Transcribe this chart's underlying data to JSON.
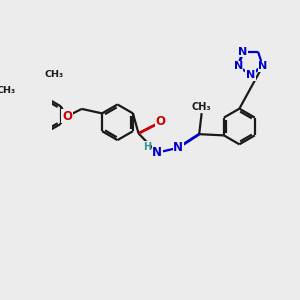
{
  "bg_color": "#ececec",
  "bc": "#1a1a1a",
  "bw": 1.6,
  "dbo": 0.012,
  "NC": "#0000cc",
  "OC": "#cc0000",
  "HC": "#3a9090",
  "fs": 7.5,
  "fss": 6.5,
  "figsize": [
    3.0,
    3.0
  ],
  "dpi": 100,
  "xlim": [
    0,
    10
  ],
  "ylim": [
    0,
    10
  ]
}
